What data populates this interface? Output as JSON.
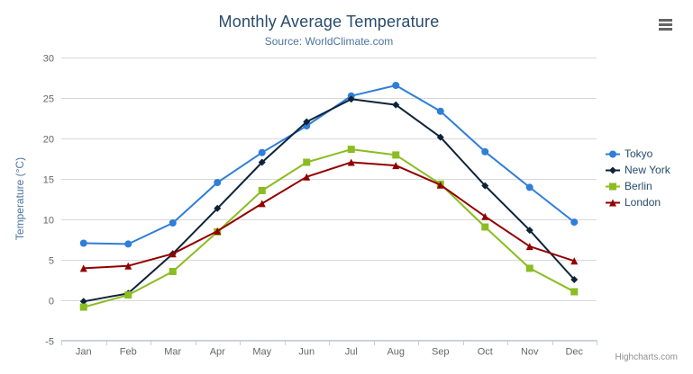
{
  "chart_data": {
    "type": "line",
    "title": "Monthly Average Temperature",
    "subtitle": "Source: WorldClimate.com",
    "categories": [
      "Jan",
      "Feb",
      "Mar",
      "Apr",
      "May",
      "Jun",
      "Jul",
      "Aug",
      "Sep",
      "Oct",
      "Nov",
      "Dec"
    ],
    "xlabel": "",
    "ylabel": "Temperature (°C)",
    "ylim": [
      -5,
      30
    ],
    "ytick_interval": 5,
    "grid": true,
    "legend_position": "right-middle",
    "series": [
      {
        "name": "Tokyo",
        "color": "#2f7ed8",
        "marker": "circle",
        "values": [
          7.0,
          6.9,
          9.5,
          14.5,
          18.2,
          21.5,
          25.2,
          26.5,
          23.3,
          18.3,
          13.9,
          9.6
        ]
      },
      {
        "name": "New York",
        "color": "#0d233a",
        "marker": "diamond",
        "values": [
          -0.2,
          0.8,
          5.7,
          11.3,
          17.0,
          22.0,
          24.8,
          24.1,
          20.1,
          14.1,
          8.6,
          2.5
        ]
      },
      {
        "name": "Berlin",
        "color": "#8bbc21",
        "marker": "square",
        "values": [
          -0.9,
          0.6,
          3.5,
          8.4,
          13.5,
          17.0,
          18.6,
          17.9,
          14.3,
          9.0,
          3.9,
          1.0
        ]
      },
      {
        "name": "London",
        "color": "#910000",
        "marker": "triangle",
        "values": [
          3.9,
          4.2,
          5.7,
          8.5,
          11.9,
          15.2,
          17.0,
          16.6,
          14.2,
          10.3,
          6.6,
          4.8
        ]
      }
    ]
  },
  "credits": {
    "label": "Highcharts.com"
  },
  "toolbar": {
    "context_menu_icon": "hamburger-icon"
  },
  "colors": {
    "title": "#274b6d",
    "subtitle": "#4d759e",
    "axis_label": "#666666",
    "axis_title": "#4d759e",
    "axis_line": "#c0d0e0",
    "grid_line": "#d8d8d8",
    "legend_text": "#274b6d",
    "credits": "#909090",
    "background": "#ffffff"
  }
}
